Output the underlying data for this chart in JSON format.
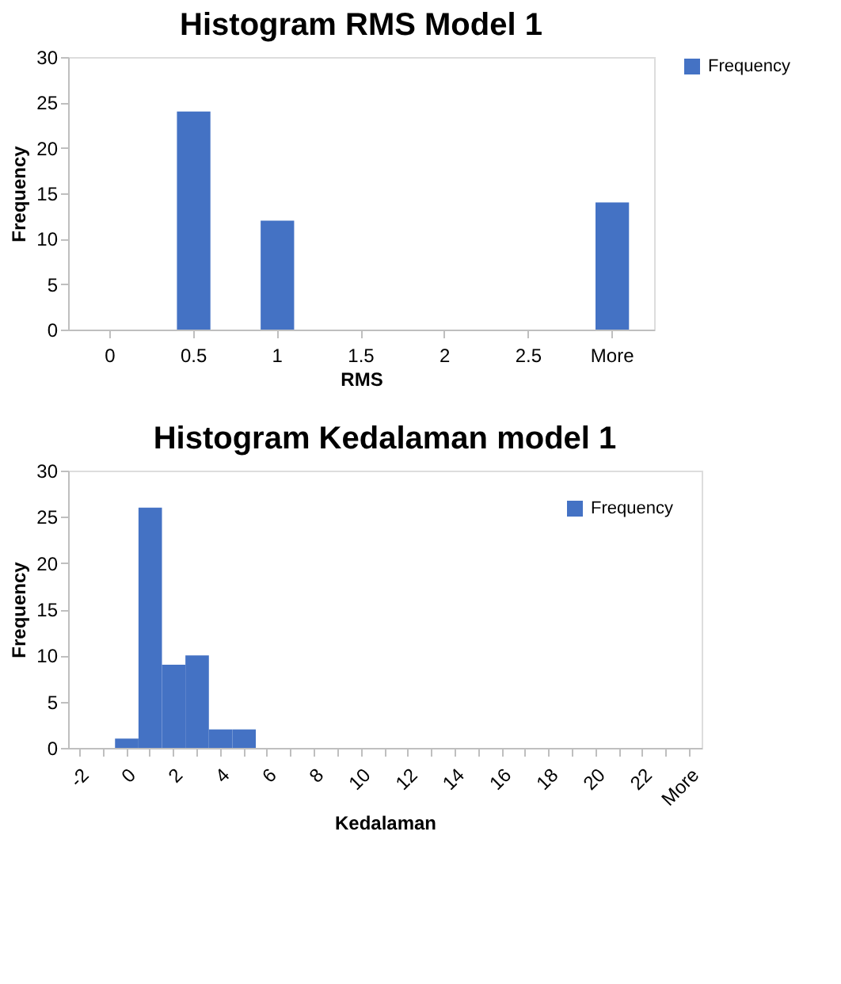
{
  "chart_data": [
    {
      "type": "bar",
      "title": "Histogram RMS Model 1",
      "xlabel": "RMS",
      "ylabel": "Frequency",
      "categories": [
        "0",
        "0.5",
        "1",
        "1.5",
        "2",
        "2.5",
        "More"
      ],
      "series": [
        {
          "name": "Frequency",
          "color": "#4472c4",
          "values": [
            0,
            24,
            12,
            0,
            0,
            0,
            14
          ]
        }
      ],
      "ylim": [
        0,
        30
      ],
      "yticks": [
        0,
        5,
        10,
        15,
        20,
        25,
        30
      ],
      "grid": false,
      "legend": "right"
    },
    {
      "type": "bar",
      "title": "Histogram Kedalaman model 1",
      "xlabel": "Kedalaman",
      "ylabel": "Frequency",
      "categories": [
        "-2",
        null,
        "0",
        null,
        "2",
        null,
        "4",
        null,
        "6",
        null,
        "8",
        null,
        "10",
        null,
        "12",
        null,
        "14",
        null,
        "16",
        null,
        "18",
        null,
        "20",
        null,
        "22",
        null,
        "More"
      ],
      "series": [
        {
          "name": "Frequency",
          "color": "#4472c4",
          "values": [
            0,
            0,
            1,
            26,
            9,
            10,
            2,
            2,
            0,
            0,
            0,
            0,
            0,
            0,
            0,
            0,
            0,
            0,
            0,
            0,
            0,
            0,
            0,
            0,
            0,
            0,
            0
          ]
        }
      ],
      "ylim": [
        0,
        30
      ],
      "yticks": [
        0,
        5,
        10,
        15,
        20,
        25,
        30
      ],
      "grid": false,
      "legend": "top right"
    }
  ]
}
